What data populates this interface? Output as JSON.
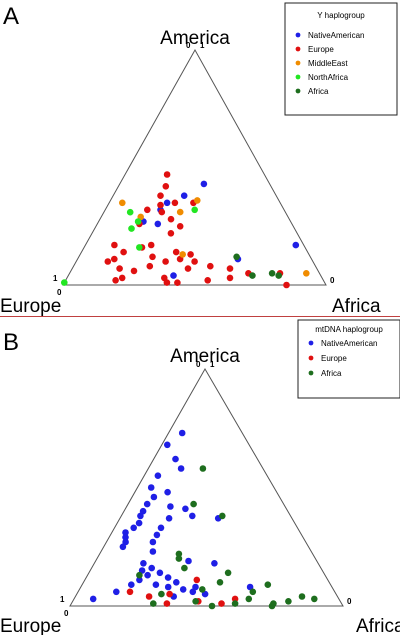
{
  "chart_data": [
    {
      "type": "scatter",
      "panel": "A",
      "ternary_axes": [
        "America",
        "Europe",
        "Africa"
      ],
      "ticks": {
        "america_top": [
          "0",
          "1"
        ],
        "europe_corner": "1",
        "europe_zero": "0",
        "africa_zero": "0"
      },
      "legend": {
        "title": "Y haplogroup",
        "position": "top-right"
      },
      "series": [
        {
          "name": "NativeAmerican",
          "color": "#1f1fe6",
          "points": [
            [
              0.17,
              0.03,
              0.8
            ],
            [
              0.43,
              0.25,
              0.32
            ],
            [
              0.35,
              0.43,
              0.22
            ],
            [
              0.26,
              0.51,
              0.23
            ],
            [
              0.32,
              0.47,
              0.21
            ],
            [
              0.27,
              0.56,
              0.17
            ],
            [
              0.11,
              0.28,
              0.61
            ],
            [
              0.38,
              0.35,
              0.27
            ],
            [
              0.04,
              0.56,
              0.4
            ]
          ]
        },
        {
          "name": "Europe",
          "color": "#e01010",
          "points": [
            [
              0.35,
              0.4,
              0.25
            ],
            [
              0.38,
              0.44,
              0.18
            ],
            [
              0.42,
              0.4,
              0.18
            ],
            [
              0.47,
              0.37,
              0.16
            ],
            [
              0.31,
              0.47,
              0.22
            ],
            [
              0.34,
              0.46,
              0.2
            ],
            [
              0.28,
              0.45,
              0.27
            ],
            [
              0.32,
              0.52,
              0.16
            ],
            [
              0.26,
              0.58,
              0.16
            ],
            [
              0.22,
              0.48,
              0.3
            ],
            [
              0.35,
              0.33,
              0.32
            ],
            [
              0.25,
              0.43,
              0.32
            ],
            [
              0.11,
              0.75,
              0.14
            ],
            [
              0.1,
              0.78,
              0.12
            ],
            [
              0.14,
              0.7,
              0.16
            ],
            [
              0.07,
              0.75,
              0.18
            ],
            [
              0.06,
              0.7,
              0.24
            ],
            [
              0.03,
              0.76,
              0.21
            ],
            [
              0.02,
              0.79,
              0.19
            ],
            [
              0.12,
              0.6,
              0.28
            ],
            [
              0.1,
              0.56,
              0.34
            ],
            [
              0.11,
              0.5,
              0.39
            ],
            [
              0.1,
              0.45,
              0.45
            ],
            [
              0.14,
              0.5,
              0.36
            ],
            [
              0.17,
              0.58,
              0.25
            ],
            [
              0.16,
              0.62,
              0.22
            ],
            [
              0.03,
              0.6,
              0.37
            ],
            [
              0.07,
              0.49,
              0.44
            ],
            [
              0.08,
              0.4,
              0.52
            ],
            [
              0.07,
              0.33,
              0.6
            ],
            [
              0.03,
              0.35,
              0.62
            ],
            [
              0.05,
              0.27,
              0.68
            ],
            [
              0.01,
              0.56,
              0.43
            ],
            [
              0.01,
              0.6,
              0.39
            ],
            [
              0.0,
              0.15,
              0.85
            ],
            [
              0.02,
              0.44,
              0.54
            ],
            [
              0.05,
              0.15,
              0.8
            ],
            [
              0.13,
              0.45,
              0.42
            ],
            [
              0.17,
              0.72,
              0.11
            ],
            [
              0.08,
              0.63,
              0.29
            ]
          ]
        },
        {
          "name": "MiddleEast",
          "color": "#f08c00",
          "points": [
            [
              0.36,
              0.31,
              0.33
            ],
            [
              0.31,
              0.4,
              0.29
            ],
            [
              0.29,
              0.56,
              0.15
            ],
            [
              0.35,
              0.6,
              0.05
            ],
            [
              0.13,
              0.48,
              0.39
            ],
            [
              0.05,
              0.05,
              0.9
            ]
          ]
        },
        {
          "name": "NorthAfrica",
          "color": "#22e622",
          "points": [
            [
              0.01,
              0.99,
              0.0
            ],
            [
              0.32,
              0.34,
              0.34
            ],
            [
              0.27,
              0.58,
              0.15
            ],
            [
              0.24,
              0.62,
              0.14
            ],
            [
              0.31,
              0.59,
              0.1
            ],
            [
              0.16,
              0.63,
              0.21
            ]
          ]
        },
        {
          "name": "Africa",
          "color": "#1e6e1e",
          "points": [
            [
              0.05,
              0.18,
              0.77
            ],
            [
              0.04,
              0.16,
              0.8
            ],
            [
              0.04,
              0.26,
              0.7
            ],
            [
              0.12,
              0.28,
              0.6
            ]
          ]
        }
      ]
    },
    {
      "type": "scatter",
      "panel": "B",
      "ternary_axes": [
        "America",
        "Europe",
        "Africa"
      ],
      "ticks": {
        "america_top": [
          "0",
          "1"
        ],
        "europe_corner": "1",
        "europe_zero": "0",
        "africa_zero": "0"
      },
      "legend": {
        "title": "mtDNA haplogroup",
        "position": "top-right"
      },
      "series": [
        {
          "name": "NativeAmerican",
          "color": "#1f1fe6",
          "points": [
            [
              0.73,
              0.22,
              0.05
            ],
            [
              0.68,
              0.3,
              0.02
            ],
            [
              0.62,
              0.3,
              0.08
            ],
            [
              0.58,
              0.3,
              0.12
            ],
            [
              0.55,
              0.4,
              0.05
            ],
            [
              0.5,
              0.45,
              0.05
            ],
            [
              0.46,
              0.46,
              0.08
            ],
            [
              0.43,
              0.5,
              0.07
            ],
            [
              0.4,
              0.53,
              0.07
            ],
            [
              0.38,
              0.55,
              0.07
            ],
            [
              0.35,
              0.57,
              0.08
            ],
            [
              0.33,
              0.6,
              0.07
            ],
            [
              0.31,
              0.64,
              0.05
            ],
            [
              0.29,
              0.65,
              0.06
            ],
            [
              0.27,
              0.66,
              0.07
            ],
            [
              0.25,
              0.68,
              0.07
            ],
            [
              0.48,
              0.4,
              0.12
            ],
            [
              0.42,
              0.42,
              0.16
            ],
            [
              0.37,
              0.45,
              0.18
            ],
            [
              0.33,
              0.5,
              0.17
            ],
            [
              0.3,
              0.53,
              0.17
            ],
            [
              0.27,
              0.56,
              0.17
            ],
            [
              0.23,
              0.58,
              0.19
            ],
            [
              0.18,
              0.64,
              0.18
            ],
            [
              0.16,
              0.62,
              0.22
            ],
            [
              0.14,
              0.6,
              0.26
            ],
            [
              0.12,
              0.58,
              0.3
            ],
            [
              0.1,
              0.56,
              0.34
            ],
            [
              0.13,
              0.65,
              0.22
            ],
            [
              0.15,
              0.66,
              0.19
            ],
            [
              0.11,
              0.69,
              0.2
            ],
            [
              0.09,
              0.64,
              0.27
            ],
            [
              0.08,
              0.6,
              0.32
            ],
            [
              0.07,
              0.55,
              0.38
            ],
            [
              0.06,
              0.52,
              0.42
            ],
            [
              0.04,
              0.6,
              0.36
            ],
            [
              0.05,
              0.48,
              0.47
            ],
            [
              0.03,
              0.9,
              0.07
            ],
            [
              0.06,
              0.8,
              0.14
            ],
            [
              0.09,
              0.73,
              0.18
            ],
            [
              0.08,
              0.5,
              0.42
            ],
            [
              0.19,
              0.47,
              0.34
            ],
            [
              0.18,
              0.38,
              0.44
            ],
            [
              0.08,
              0.3,
              0.62
            ],
            [
              0.37,
              0.27,
              0.36
            ],
            [
              0.38,
              0.36,
              0.26
            ],
            [
              0.41,
              0.37,
              0.22
            ]
          ]
        },
        {
          "name": "Europe",
          "color": "#e01010",
          "points": [
            [
              0.04,
              0.69,
              0.27
            ],
            [
              0.05,
              0.61,
              0.34
            ],
            [
              0.01,
              0.64,
              0.35
            ],
            [
              0.02,
              0.52,
              0.46
            ],
            [
              0.01,
              0.44,
              0.55
            ],
            [
              0.03,
              0.38,
              0.59
            ],
            [
              0.06,
              0.75,
              0.19
            ],
            [
              0.11,
              0.48,
              0.41
            ]
          ]
        },
        {
          "name": "Africa",
          "color": "#1e6e1e",
          "points": [
            [
              0.58,
              0.22,
              0.2
            ],
            [
              0.43,
              0.33,
              0.24
            ],
            [
              0.38,
              0.25,
              0.37
            ],
            [
              0.22,
              0.49,
              0.29
            ],
            [
              0.16,
              0.5,
              0.34
            ],
            [
              0.13,
              0.68,
              0.19
            ],
            [
              0.14,
              0.35,
              0.51
            ],
            [
              0.09,
              0.23,
              0.68
            ],
            [
              0.04,
              0.13,
              0.83
            ],
            [
              0.03,
              0.09,
              0.88
            ],
            [
              0.02,
              0.19,
              0.79
            ],
            [
              0.01,
              0.25,
              0.74
            ],
            [
              0.0,
              0.26,
              0.74
            ],
            [
              0.0,
              0.48,
              0.52
            ],
            [
              0.01,
              0.39,
              0.6
            ],
            [
              0.02,
              0.53,
              0.45
            ],
            [
              0.01,
              0.69,
              0.3
            ],
            [
              0.05,
              0.64,
              0.31
            ],
            [
              0.06,
              0.3,
              0.64
            ],
            [
              0.07,
              0.48,
              0.45
            ],
            [
              0.1,
              0.4,
              0.5
            ],
            [
              0.2,
              0.5,
              0.3
            ],
            [
              0.03,
              0.33,
              0.64
            ]
          ]
        }
      ]
    }
  ]
}
